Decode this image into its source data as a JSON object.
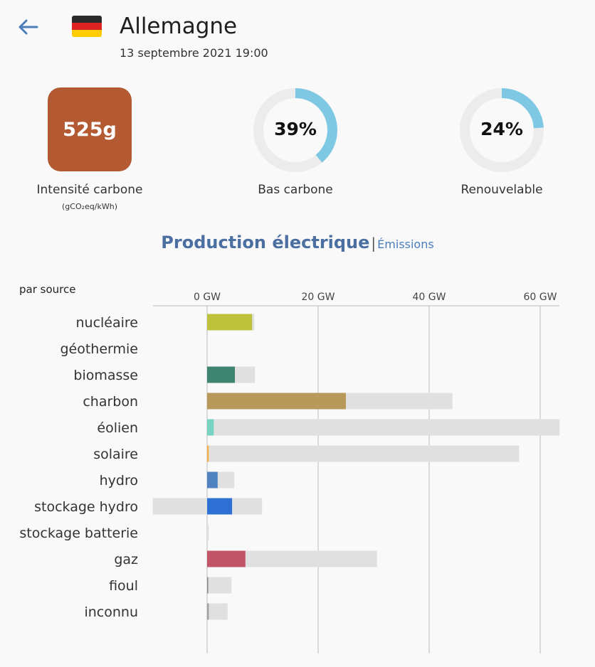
{
  "header": {
    "back_icon": "arrow-left-icon",
    "flag_icon": "germany-flag-icon",
    "flag_colors": [
      "#2b2b2b",
      "#dd2222",
      "#ffcc00"
    ],
    "country": "Allemagne",
    "datetime": "13 septembre 2021 19:00"
  },
  "metrics": {
    "carbon_intensity": {
      "value": "525g",
      "label": "Intensité carbone",
      "unit": "(gCO₂eq/kWh)",
      "color": "#b35a32"
    },
    "low_carbon": {
      "value": "39%",
      "fraction": 0.39,
      "label": "Bas carbone"
    },
    "renewable": {
      "value": "24%",
      "fraction": 0.24,
      "label": "Renouvelable"
    },
    "gauge_color": "#7ec8e3",
    "gauge_track_color": "#ececec"
  },
  "tabs": {
    "active": "Production électrique",
    "separator": "|",
    "inactive": "Émissions"
  },
  "by_source_label": "par source",
  "chart_data": {
    "type": "bar",
    "orientation": "horizontal",
    "x_unit": "GW",
    "xlim": [
      -9.8,
      63.5
    ],
    "ticks": [
      {
        "value": 0,
        "label": "0 GW"
      },
      {
        "value": 20,
        "label": "20 GW"
      },
      {
        "value": 40,
        "label": "40 GW"
      },
      {
        "value": 60,
        "label": "60 GW"
      }
    ],
    "grid": true,
    "categories": [
      "nucléaire",
      "géothermie",
      "biomasse",
      "charbon",
      "éolien",
      "solaire",
      "hydro",
      "stockage hydro",
      "stockage batterie",
      "gaz",
      "fioul",
      "inconnu"
    ],
    "production": [
      8.1,
      0,
      5.0,
      25.0,
      1.2,
      0.3,
      1.9,
      4.5,
      0,
      6.9,
      0.2,
      0.3
    ],
    "capacity": [
      8.5,
      0,
      8.6,
      44.2,
      63.5,
      56.2,
      4.9,
      9.9,
      0.3,
      30.6,
      4.4,
      3.7
    ],
    "capacity_min": [
      0,
      0,
      0,
      0,
      0,
      0,
      0,
      -9.8,
      0,
      0,
      0,
      0
    ],
    "colors": [
      "#bec13a",
      "#ff0000",
      "#3f8471",
      "#b8995a",
      "#76d3c1",
      "#f5b04c",
      "#4f82c0",
      "#2e6fd4",
      "#b0b0b0",
      "#c25468",
      "#8a8a8a",
      "#a0a0a0"
    ],
    "capacity_color": "#e0e0e0"
  }
}
